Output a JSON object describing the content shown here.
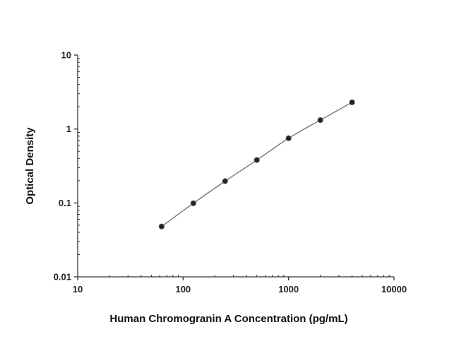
{
  "chart_data": {
    "type": "scatter",
    "title": "",
    "xlabel": "Human Chromogranin A Concentration (pg/mL)",
    "ylabel": "Optical Density",
    "x_scale": "log",
    "y_scale": "log",
    "xlim": [
      10,
      10000
    ],
    "ylim": [
      0.01,
      10
    ],
    "x_ticks": [
      10,
      100,
      1000,
      10000
    ],
    "x_tick_labels": [
      "10",
      "100",
      "1000",
      "10000"
    ],
    "y_ticks": [
      0.01,
      0.1,
      1,
      10
    ],
    "y_tick_labels": [
      "0.01",
      "0.1",
      "1",
      "10"
    ],
    "grid": false,
    "legend": "none",
    "fit_curve": true,
    "series": [
      {
        "x": [
          62.5,
          125,
          250,
          500,
          1000,
          2000,
          4000
        ],
        "y": [
          0.048,
          0.099,
          0.197,
          0.38,
          0.75,
          1.32,
          2.3
        ]
      }
    ],
    "colors": {
      "axis": "#333333",
      "curve": "#777777",
      "marker": "#222222"
    }
  }
}
